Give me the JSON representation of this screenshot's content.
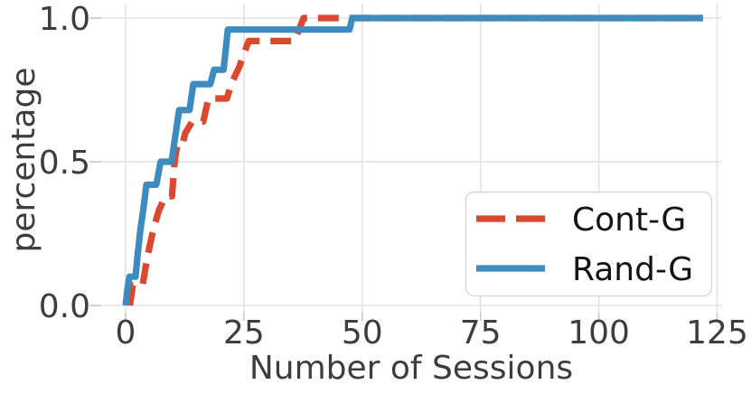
{
  "chart_data": {
    "type": "line",
    "subtype": "ecdf-step",
    "title": "",
    "xlabel": "Number of Sessions",
    "ylabel": "percentage",
    "x_ticks": [
      0,
      25,
      50,
      75,
      100,
      125
    ],
    "x_tick_labels": [
      "0",
      "25",
      "50",
      "75",
      "100",
      "125"
    ],
    "y_ticks": [
      0.0,
      0.5,
      1.0
    ],
    "y_tick_labels": [
      "0.0",
      "0.5",
      "1.0"
    ],
    "xlim": [
      -5,
      126
    ],
    "ylim": [
      -0.02,
      1.03
    ],
    "grid": true,
    "legend_position": "lower right",
    "series": [
      {
        "name": "Cont-G",
        "color": "#d9482f",
        "line_style": "dashed",
        "points": [
          [
            0.9,
            0.0
          ],
          [
            1.5,
            0.07
          ],
          [
            3.6,
            0.07
          ],
          [
            4.6,
            0.17
          ],
          [
            5.8,
            0.26
          ],
          [
            7.0,
            0.33
          ],
          [
            8.4,
            0.38
          ],
          [
            9.8,
            0.38
          ],
          [
            10.3,
            0.49
          ],
          [
            10.9,
            0.56
          ],
          [
            12.0,
            0.56
          ],
          [
            12.6,
            0.6
          ],
          [
            14.1,
            0.64
          ],
          [
            16.4,
            0.64
          ],
          [
            17.5,
            0.72
          ],
          [
            21.4,
            0.72
          ],
          [
            22.3,
            0.77
          ],
          [
            24.0,
            0.83
          ],
          [
            26.0,
            0.92
          ],
          [
            35.7,
            0.92
          ],
          [
            37.6,
            1.0
          ],
          [
            122,
            1.0
          ]
        ]
      },
      {
        "name": "Rand-G",
        "color": "#3e8cbf",
        "line_style": "solid",
        "points": [
          [
            0.0,
            0.0
          ],
          [
            0.4,
            0.06
          ],
          [
            0.8,
            0.1
          ],
          [
            2.1,
            0.1
          ],
          [
            2.5,
            0.17
          ],
          [
            3.1,
            0.26
          ],
          [
            3.7,
            0.33
          ],
          [
            4.4,
            0.42
          ],
          [
            6.5,
            0.42
          ],
          [
            7.4,
            0.5
          ],
          [
            9.7,
            0.5
          ],
          [
            10.6,
            0.6
          ],
          [
            11.3,
            0.68
          ],
          [
            13.5,
            0.68
          ],
          [
            14.3,
            0.77
          ],
          [
            17.9,
            0.77
          ],
          [
            18.7,
            0.82
          ],
          [
            20.7,
            0.82
          ],
          [
            21.6,
            0.96
          ],
          [
            47.3,
            0.96
          ],
          [
            47.9,
            1.0
          ],
          [
            122,
            1.0
          ]
        ]
      }
    ]
  },
  "colors": {
    "background": "#ffffff",
    "grid": "#e2e2e2",
    "tick": "#c8c8c8",
    "text": "#3d3d3d",
    "legend_border": "#d9d9d9",
    "cont_g": "#d9482f",
    "rand_g": "#3e8cbf"
  }
}
